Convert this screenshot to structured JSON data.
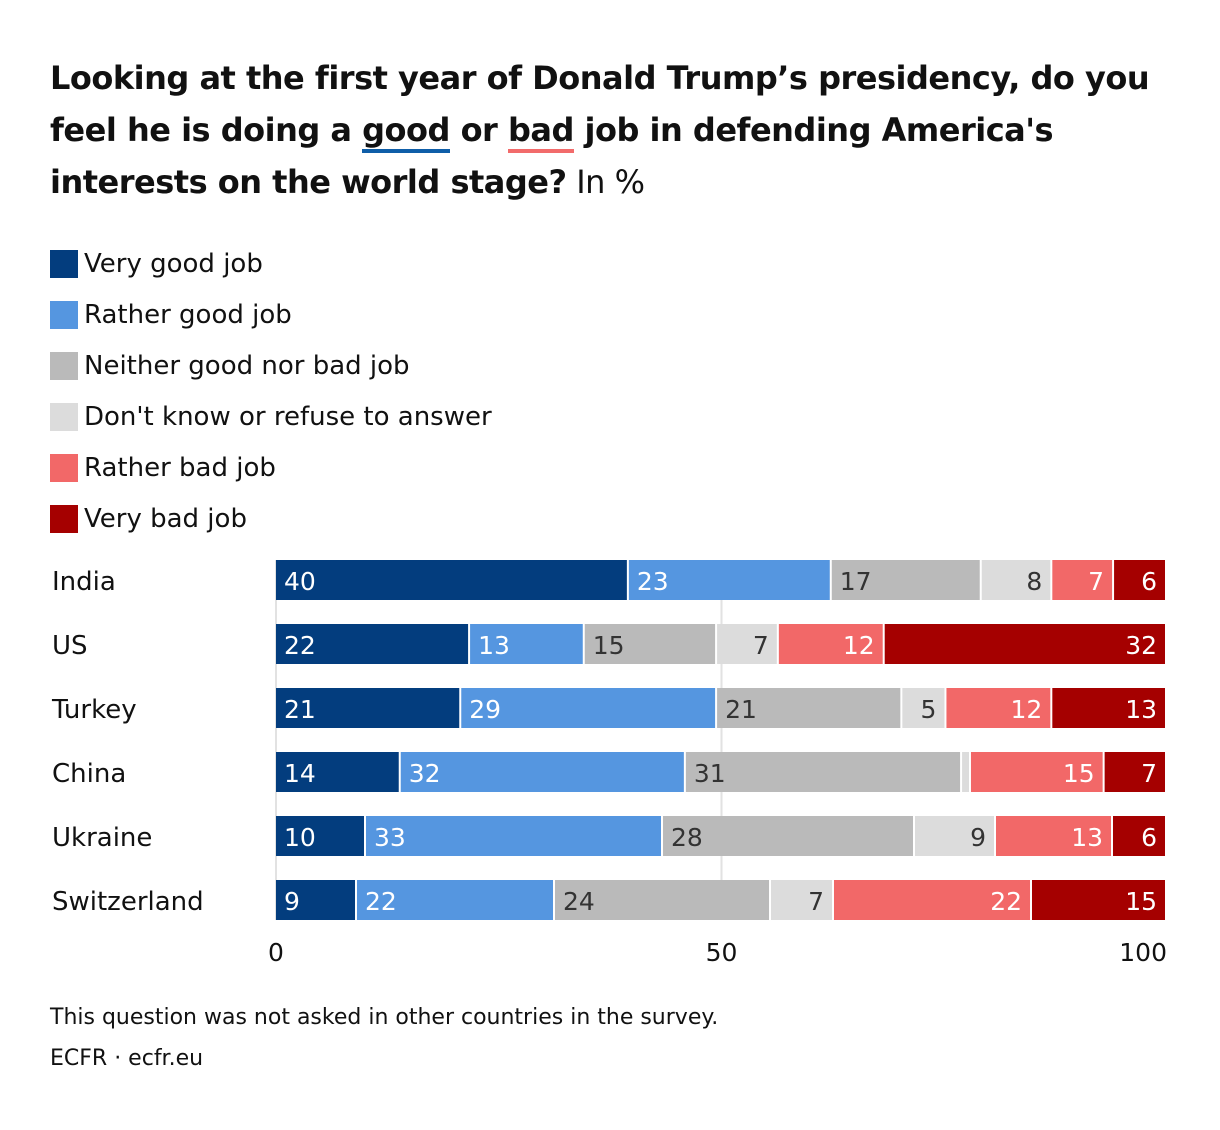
{
  "title": {
    "part1": "Looking at the first year of Donald Trump’s presidency, do you feel he is doing a ",
    "good": "good",
    "or": " or ",
    "bad": "bad",
    "part2": " job in defending America's interests on the world stage?",
    "unit": " In %"
  },
  "chart_data": {
    "type": "bar",
    "orientation": "horizontal",
    "stacked": true,
    "categories": [
      "India",
      "US",
      "Turkey",
      "China",
      "Ukraine",
      "Switzerland"
    ],
    "series": [
      {
        "name": "Very good job",
        "color": "#033d7e",
        "values": [
          40,
          22,
          21,
          14,
          10,
          9
        ]
      },
      {
        "name": "Rather good job",
        "color": "#5596e0",
        "values": [
          23,
          13,
          29,
          32,
          33,
          22
        ]
      },
      {
        "name": "Neither good nor bad job",
        "color": "#bababa",
        "values": [
          17,
          15,
          21,
          31,
          28,
          24
        ]
      },
      {
        "name": "Don't know or refuse to answer",
        "color": "#dcdcdc",
        "values": [
          8,
          7,
          5,
          1,
          9,
          7
        ]
      },
      {
        "name": "Rather bad job",
        "color": "#f26868",
        "values": [
          7,
          12,
          12,
          15,
          13,
          22
        ]
      },
      {
        "name": "Very bad job",
        "color": "#a50000",
        "values": [
          6,
          32,
          13,
          7,
          6,
          15
        ]
      }
    ],
    "xlim": [
      0,
      100
    ],
    "xticks": [
      "0",
      "50",
      "100"
    ],
    "legend": "top-left",
    "grid": true
  },
  "footer": {
    "note": "This question was not asked in other countries in the survey.",
    "source": "ECFR · ecfr.eu"
  }
}
